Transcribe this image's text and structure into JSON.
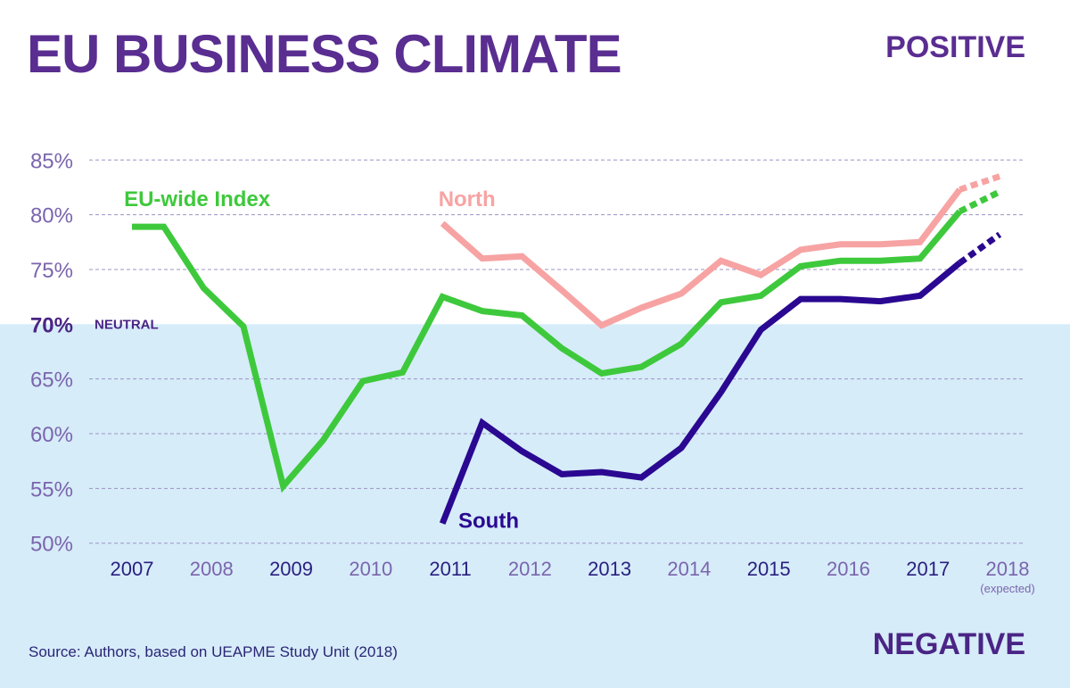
{
  "header": {
    "title": "EU BUSINESS CLIMATE",
    "positive": "POSITIVE",
    "negative": "NEGATIVE"
  },
  "source": "Source: Authors, based on UEAPME Study Unit (2018)",
  "neutral_label": "NEUTRAL",
  "colors": {
    "title": "#5a2d91",
    "negative_zone": "#d6ecf9",
    "gridline": "#9c93c2",
    "tick_muted": "#7b65ad",
    "tick_strong": "#2a1f80"
  },
  "chart_data": {
    "type": "line",
    "ylim": [
      49,
      86
    ],
    "yticks": [
      {
        "value": 85,
        "label": "85%"
      },
      {
        "value": 80,
        "label": "80%"
      },
      {
        "value": 75,
        "label": "75%"
      },
      {
        "value": 70,
        "label": "70%"
      },
      {
        "value": 65,
        "label": "65%"
      },
      {
        "value": 60,
        "label": "60%"
      },
      {
        "value": 55,
        "label": "55%"
      },
      {
        "value": 50,
        "label": "50%"
      }
    ],
    "xlim": [
      2007,
      2018
    ],
    "xticks": [
      {
        "value": 2007,
        "label": "2007"
      },
      {
        "value": 2008,
        "label": "2008"
      },
      {
        "value": 2009,
        "label": "2009"
      },
      {
        "value": 2010,
        "label": "2010"
      },
      {
        "value": 2011,
        "label": "2011"
      },
      {
        "value": 2012,
        "label": "2012"
      },
      {
        "value": 2013,
        "label": "2013"
      },
      {
        "value": 2014,
        "label": "2014"
      },
      {
        "value": 2015,
        "label": "2015"
      },
      {
        "value": 2016,
        "label": "2016"
      },
      {
        "value": 2017,
        "label": "2017"
      },
      {
        "value": 2018,
        "label": "2018",
        "note": "(expected)"
      }
    ],
    "neutral_value": 70,
    "grid": true,
    "series": [
      {
        "name": "EU-wide Index",
        "color": "#3ec93c",
        "label_anchor": {
          "x": 2006.9,
          "y": 80.8
        },
        "x": [
          2007,
          2007.4,
          2007.9,
          2008.4,
          2008.9,
          2009.4,
          2009.9,
          2010.4,
          2010.9,
          2011.4,
          2011.9,
          2012.4,
          2012.9,
          2013.4,
          2013.9,
          2014.4,
          2014.9,
          2015.4,
          2015.9,
          2016.4,
          2016.9,
          2017.4,
          2017.9
        ],
        "y": [
          78.9,
          78.9,
          73.3,
          69.8,
          55.2,
          59.4,
          64.8,
          65.6,
          72.5,
          71.2,
          70.8,
          67.8,
          65.5,
          66.1,
          68.2,
          72.0,
          72.6,
          75.3,
          75.8,
          75.8,
          76.0,
          80.3,
          82.1
        ],
        "projected_from": 21
      },
      {
        "name": "North",
        "color": "#f7a3a3",
        "label_anchor": {
          "x": 2010.85,
          "y": 80.8
        },
        "x": [
          2010.9,
          2011.4,
          2011.9,
          2012.4,
          2012.9,
          2013.4,
          2013.9,
          2014.4,
          2014.9,
          2015.4,
          2015.9,
          2016.4,
          2016.9,
          2017.4,
          2017.9
        ],
        "y": [
          79.2,
          76.0,
          76.2,
          73.1,
          69.9,
          71.5,
          72.8,
          75.8,
          74.5,
          76.8,
          77.3,
          77.3,
          77.5,
          82.3,
          83.5
        ],
        "projected_from": 13
      },
      {
        "name": "South",
        "color": "#2a0891",
        "label_anchor": {
          "x": 2011.1,
          "y": 51.4
        },
        "x": [
          2010.9,
          2011.4,
          2011.9,
          2012.4,
          2012.9,
          2013.4,
          2013.9,
          2014.4,
          2014.9,
          2015.4,
          2015.9,
          2016.4,
          2016.9,
          2017.4,
          2017.9
        ],
        "y": [
          51.8,
          61.0,
          58.4,
          56.3,
          56.5,
          56.0,
          58.7,
          63.8,
          69.5,
          72.3,
          72.3,
          72.1,
          72.6,
          75.6,
          78.2
        ],
        "projected_from": 13
      }
    ]
  }
}
